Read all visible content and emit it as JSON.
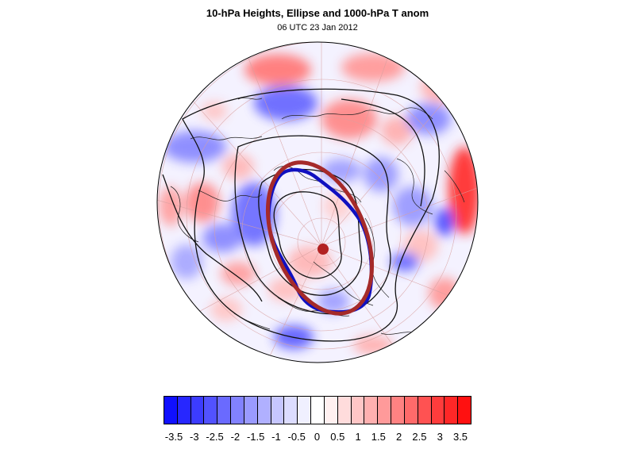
{
  "title": "10-hPa Heights, Ellipse and 1000-hPa T anom",
  "subtitle": "06 UTC 23 Jan 2012",
  "map": {
    "projection": "orthographic",
    "field": "1000-hPa temperature anomaly",
    "contours": "10-hPa heights",
    "ellipse_color": "#a52a2a",
    "obs_contour_color": "#1010c0",
    "center_marker_color": "#b22222"
  },
  "colorbar": {
    "colors": [
      "#1010ff",
      "#2727ff",
      "#3c3cff",
      "#5252ff",
      "#6a6aff",
      "#8282ff",
      "#9a9aff",
      "#b0b0ff",
      "#c6c6ff",
      "#dcdcff",
      "#f0f0ff",
      "#ffffff",
      "#fff0f0",
      "#ffdcdc",
      "#ffc6c6",
      "#ffb0b0",
      "#ff9a9a",
      "#ff8282",
      "#ff6a6a",
      "#ff5252",
      "#ff3c3c",
      "#ff2727",
      "#ff1010"
    ],
    "labels": [
      "-3.5",
      "-3",
      "-2.5",
      "-2",
      "-1.5",
      "-1",
      "-0.5",
      "0",
      "0.5",
      "1",
      "1.5",
      "2",
      "2.5",
      "3",
      "3.5"
    ]
  }
}
